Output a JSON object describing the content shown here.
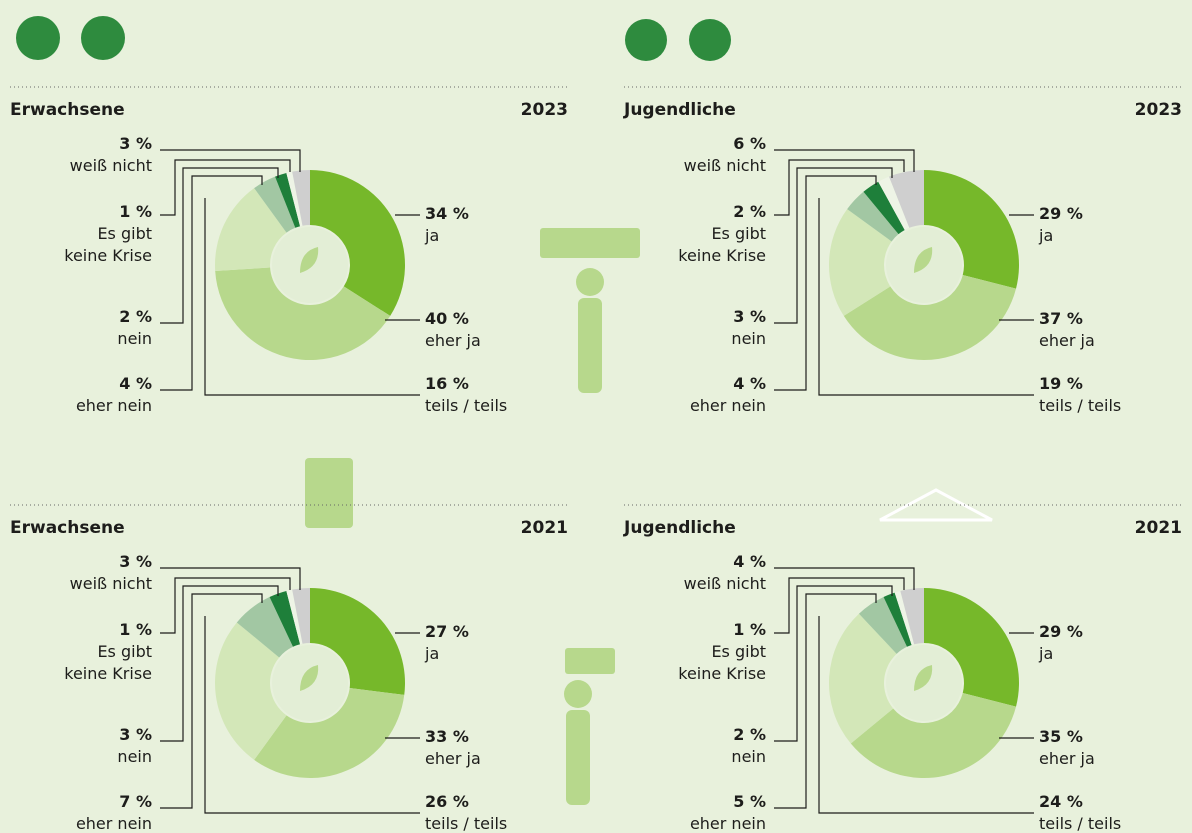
{
  "chart_data": [
    {
      "type": "pie",
      "title": "Erwachsene",
      "subtitle": "2023",
      "categories": [
        "ja",
        "eher ja",
        "teils / teils",
        "eher nein",
        "nein",
        "Es gibt keine Krise",
        "weiß nicht"
      ],
      "values": [
        34,
        40,
        16,
        4,
        2,
        1,
        3
      ],
      "value_labels": [
        "34 %",
        "40 %",
        "16 %",
        "4 %",
        "2 %",
        "1 %",
        "3 %"
      ],
      "colors": [
        "#76b82a",
        "#b7d88c",
        "#d3e7b8",
        "#a2c7a3",
        "#1e7f3a",
        "#eef4e6",
        "#cfcfcf"
      ]
    },
    {
      "type": "pie",
      "title": "Jugendliche",
      "subtitle": "2023",
      "categories": [
        "ja",
        "eher ja",
        "teils / teils",
        "eher nein",
        "nein",
        "Es gibt keine Krise",
        "weiß nicht"
      ],
      "values": [
        29,
        37,
        19,
        4,
        3,
        2,
        6
      ],
      "value_labels": [
        "29 %",
        "37 %",
        "19 %",
        "4 %",
        "3 %",
        "2 %",
        "6 %"
      ],
      "colors": [
        "#76b82a",
        "#b7d88c",
        "#d3e7b8",
        "#a2c7a3",
        "#1e7f3a",
        "#eef4e6",
        "#cfcfcf"
      ]
    },
    {
      "type": "pie",
      "title": "Erwachsene",
      "subtitle": "2021",
      "categories": [
        "ja",
        "eher ja",
        "teils / teils",
        "eher nein",
        "nein",
        "Es gibt keine Krise",
        "weiß nicht"
      ],
      "values": [
        27,
        33,
        26,
        7,
        3,
        1,
        3
      ],
      "value_labels": [
        "27 %",
        "33 %",
        "26 %",
        "7 %",
        "3 %",
        "1 %",
        "3 %"
      ],
      "colors": [
        "#76b82a",
        "#b7d88c",
        "#d3e7b8",
        "#a2c7a3",
        "#1e7f3a",
        "#eef4e6",
        "#cfcfcf"
      ]
    },
    {
      "type": "pie",
      "title": "Jugendliche",
      "subtitle": "2021",
      "categories": [
        "ja",
        "eher ja",
        "teils / teils",
        "eher nein",
        "nein",
        "Es gibt keine Krise",
        "weiß nicht"
      ],
      "values": [
        29,
        35,
        24,
        5,
        2,
        1,
        4
      ],
      "value_labels": [
        "29 %",
        "35 %",
        "24 %",
        "5 %",
        "2 %",
        "1 %",
        "4 %"
      ],
      "colors": [
        "#76b82a",
        "#b7d88c",
        "#d3e7b8",
        "#a2c7a3",
        "#1e7f3a",
        "#eef4e6",
        "#cfcfcf"
      ]
    }
  ]
}
